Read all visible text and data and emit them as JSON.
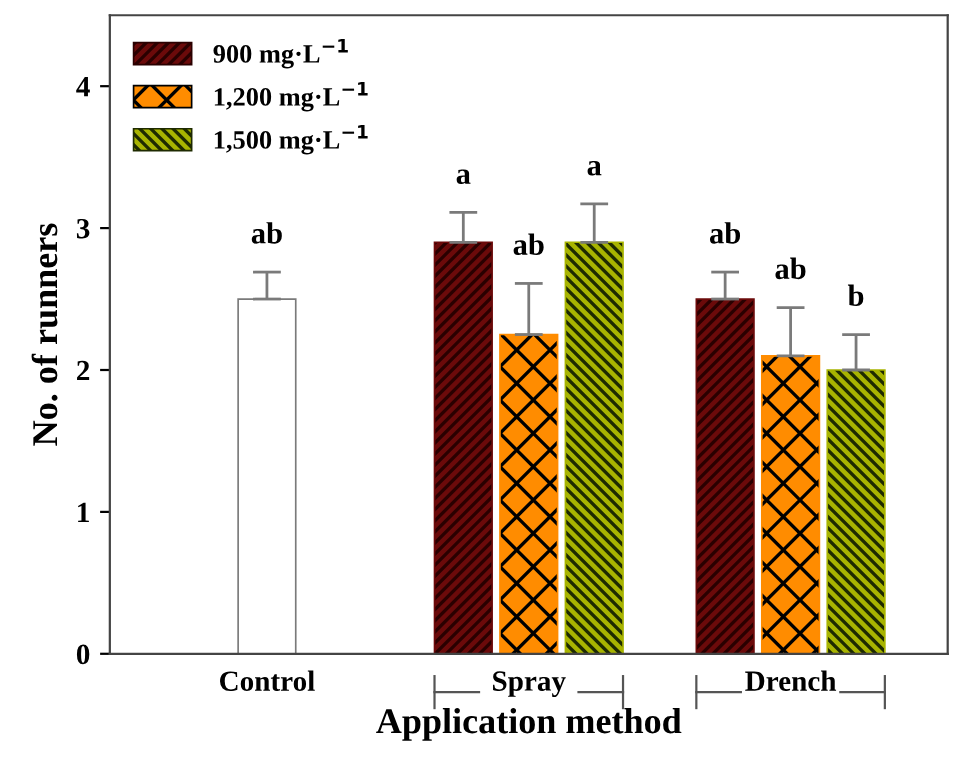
{
  "chart_data": {
    "type": "bar",
    "xlabel": "Application method",
    "ylabel": "No. of runners",
    "categories": [
      "Control",
      "Spray",
      "Drench"
    ],
    "series": [
      {
        "color": "#ffffff",
        "values": [
          2.5,
          null,
          null
        ],
        "errors": [
          0.19,
          null,
          null
        ]
      },
      {
        "name": "900 mg·L$^{−1}$",
        "color": "#6b0a0a",
        "values": [
          null,
          2.9,
          2.5
        ],
        "errors": [
          null,
          0.21,
          0.19
        ]
      },
      {
        "name": "1,200 mg·L$^{−1}$",
        "color": "#ff8c00",
        "values": [
          null,
          2.25,
          2.1
        ],
        "errors": [
          null,
          0.36,
          0.34
        ]
      },
      {
        "name": "1,500 mg·L$^{−1}$",
        "color": "#a8b400",
        "values": [
          null,
          2.9,
          2.0
        ],
        "errors": [
          null,
          0.27,
          0.25
        ]
      }
    ],
    "ylim": [
      0,
      4.5
    ],
    "yticks": [
      0,
      1,
      2,
      3,
      4
    ],
    "grid": false,
    "legend": "top left",
    "annotations": [
      "ab",
      "a",
      "ab",
      "a",
      "ab",
      "ab",
      "b"
    ]
  }
}
